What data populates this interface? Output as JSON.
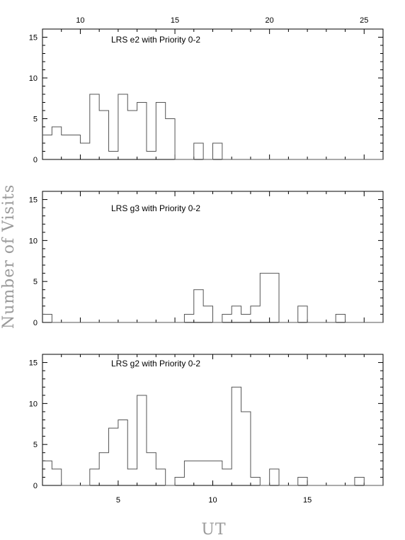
{
  "figure": {
    "xlabel": "UT",
    "ylabel": "Number of Visits"
  },
  "chart_data": [
    {
      "type": "bar",
      "title": "LRS e2 with Priority 0-2",
      "xlim": [
        8,
        26
      ],
      "ylim": [
        0,
        16
      ],
      "xticks": [
        10,
        15,
        20,
        25
      ],
      "yticks": [
        0,
        5,
        10,
        15
      ],
      "xtick_position": "top",
      "bin_width": 0.5,
      "bin_start": 8,
      "values": [
        3,
        4,
        3,
        3,
        2,
        8,
        6,
        1,
        8,
        6,
        7,
        1,
        7,
        5,
        0,
        0,
        2,
        0,
        2,
        0,
        0,
        0,
        0,
        0,
        0,
        0,
        0,
        0,
        0,
        0,
        0,
        0,
        0,
        0,
        0,
        0
      ]
    },
    {
      "type": "bar",
      "title": "LRS g3 with Priority 0-2",
      "xlim": [
        8,
        26
      ],
      "ylim": [
        0,
        16
      ],
      "xticks": [
        10,
        15,
        20,
        25
      ],
      "yticks": [
        0,
        5,
        10,
        15
      ],
      "xtick_position": "none",
      "bin_width": 0.5,
      "bin_start": 8,
      "values": [
        1,
        0,
        0,
        0,
        0,
        0,
        0,
        0,
        0,
        0,
        0,
        0,
        0,
        0,
        0,
        1,
        4,
        2,
        0,
        1,
        2,
        1,
        2,
        6,
        6,
        0,
        0,
        2,
        0,
        0,
        0,
        1,
        0,
        0,
        0,
        0
      ]
    },
    {
      "type": "bar",
      "title": "LRS g2 with Priority 0-2",
      "xlim": [
        1,
        19
      ],
      "ylim": [
        0,
        16
      ],
      "xticks": [
        5,
        10,
        15
      ],
      "yticks": [
        0,
        5,
        10,
        15
      ],
      "xtick_position": "bottom",
      "bin_width": 0.5,
      "bin_start": 1,
      "values": [
        3,
        2,
        0,
        0,
        0,
        2,
        4,
        7,
        8,
        2,
        11,
        4,
        2,
        0,
        1,
        3,
        3,
        3,
        3,
        2,
        12,
        9,
        1,
        0,
        2,
        0,
        0,
        1,
        0,
        0,
        0,
        0,
        0,
        1,
        0,
        0
      ]
    }
  ]
}
